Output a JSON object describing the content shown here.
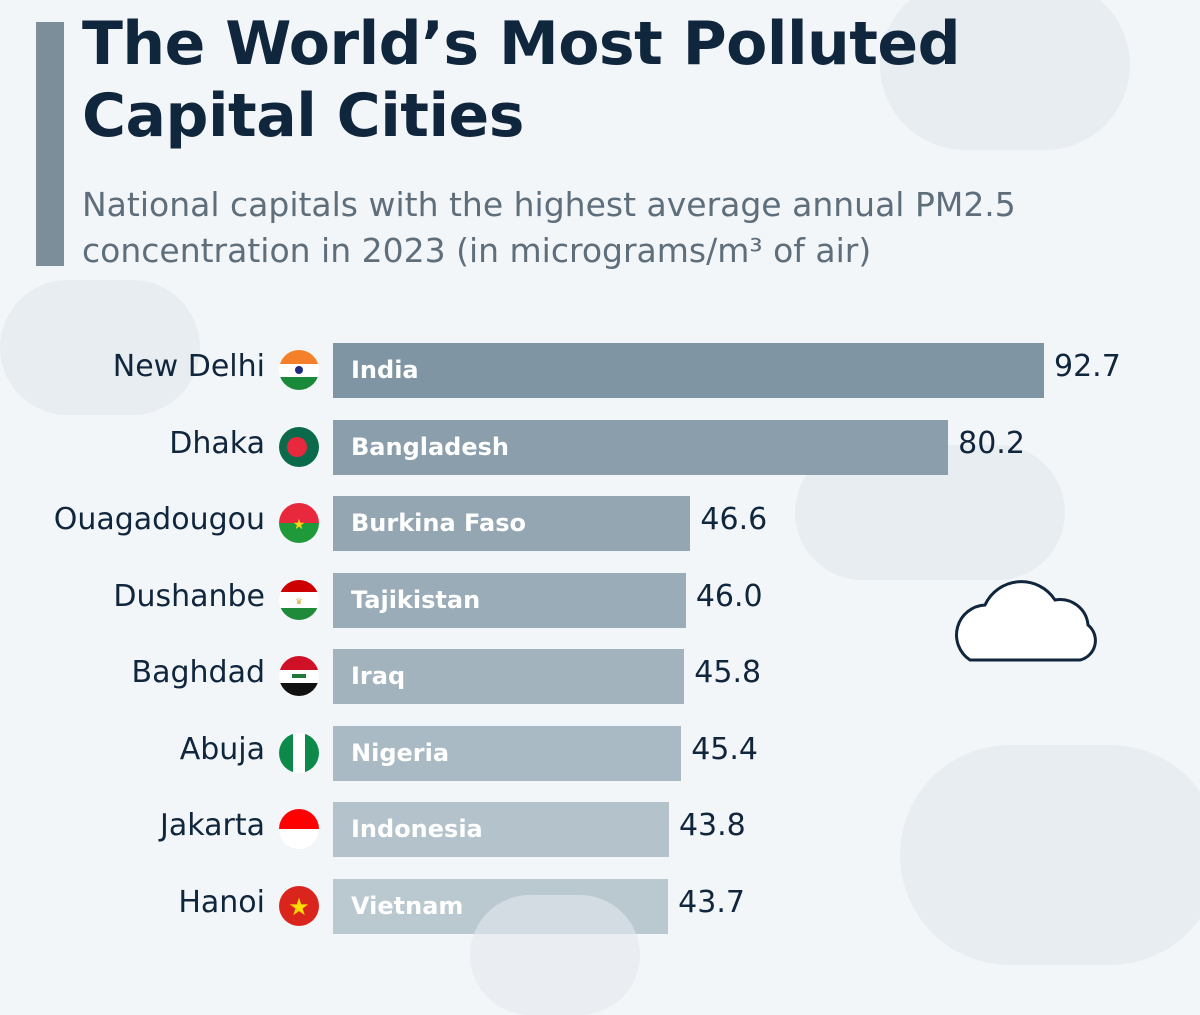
{
  "header": {
    "title": "The World’s Most Polluted Capital Cities",
    "subtitle": "National capitals with the highest average annual PM2.5 concentration in 2023 (in micrograms/m³ of air)"
  },
  "chart_data": {
    "type": "bar",
    "orientation": "horizontal",
    "title": "The World’s Most Polluted Capital Cities",
    "subtitle": "National capitals with the highest average annual PM2.5 concentration in 2023 (in micrograms/m³ of air)",
    "categories": [
      "New Delhi",
      "Dhaka",
      "Ouagadougou",
      "Dushanbe",
      "Baghdad",
      "Abuja",
      "Jakarta",
      "Hanoi"
    ],
    "countries": [
      "India",
      "Bangladesh",
      "Burkina Faso",
      "Tajikistan",
      "Iraq",
      "Nigeria",
      "Indonesia",
      "Vietnam"
    ],
    "flags": [
      "india-flag",
      "bangladesh-flag",
      "burkina-faso-flag",
      "tajikistan-flag",
      "iraq-flag",
      "nigeria-flag",
      "indonesia-flag",
      "vietnam-flag"
    ],
    "values": [
      92.7,
      80.2,
      46.6,
      46.0,
      45.8,
      45.4,
      43.8,
      43.7
    ],
    "value_labels": [
      "92.7",
      "80.2",
      "46.6",
      "46.0",
      "45.8",
      "45.4",
      "43.8",
      "43.7"
    ],
    "bar_colors": [
      "#7f95a3",
      "#8a9eab",
      "#93a6b2",
      "#9aacb8",
      "#a2b3be",
      "#aabac4",
      "#b3c2cb",
      "#bac8d0"
    ],
    "grid": false,
    "legend": "none"
  }
}
